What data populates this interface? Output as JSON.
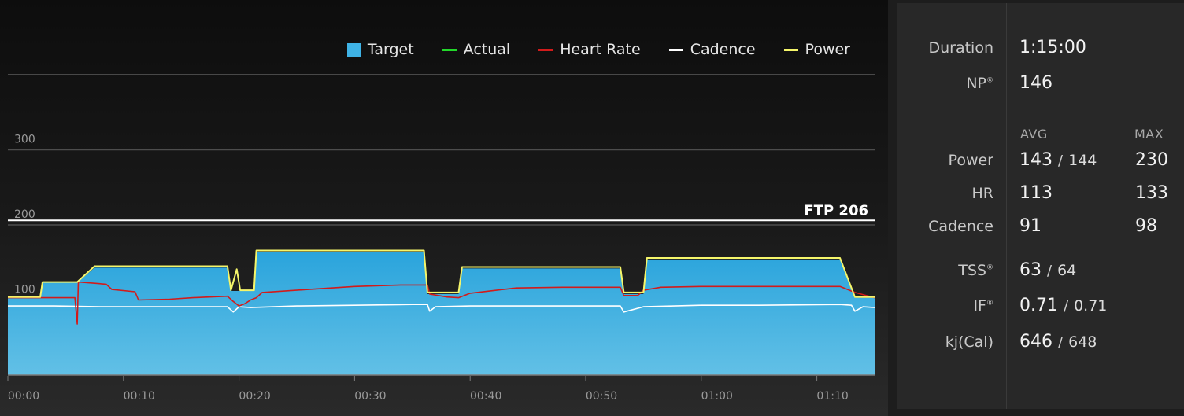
{
  "legend": [
    {
      "label": "Target",
      "color": "#3fb3e6",
      "kind": "box"
    },
    {
      "label": "Actual",
      "color": "#22d82a",
      "kind": "line"
    },
    {
      "label": "Heart Rate",
      "color": "#d21b1b",
      "kind": "line"
    },
    {
      "label": "Cadence",
      "color": "#ffffff",
      "kind": "line"
    },
    {
      "label": "Power",
      "color": "#f5f56a",
      "kind": "line"
    }
  ],
  "chart_data": {
    "type": "area",
    "x_unit": "elapsed time (minutes)",
    "xlim": [
      0,
      75
    ],
    "ylim": [
      0,
      400
    ],
    "x_ticks": [
      {
        "value": 0,
        "label": "00:00"
      },
      {
        "value": 10,
        "label": "00:10"
      },
      {
        "value": 20,
        "label": "00:20"
      },
      {
        "value": 30,
        "label": "00:30"
      },
      {
        "value": 40,
        "label": "00:40"
      },
      {
        "value": 50,
        "label": "00:50"
      },
      {
        "value": 60,
        "label": "01:00"
      },
      {
        "value": 70,
        "label": "01:10"
      }
    ],
    "y_ticks": [
      {
        "value": 100,
        "label": "100"
      },
      {
        "value": 200,
        "label": "200"
      },
      {
        "value": 300,
        "label": "300"
      }
    ],
    "ftp": {
      "value": 206,
      "label": "FTP 206"
    },
    "series": [
      {
        "name": "Target",
        "color": "#3fb3e6",
        "points": [
          [
            0,
            103
          ],
          [
            2.8,
            103
          ],
          [
            3,
            123
          ],
          [
            6,
            123
          ],
          [
            7.5,
            143
          ],
          [
            19,
            143
          ],
          [
            19.3,
            112
          ],
          [
            21.3,
            112
          ],
          [
            21.5,
            164
          ],
          [
            36,
            164
          ],
          [
            36.3,
            108
          ],
          [
            39,
            108
          ],
          [
            39.3,
            142
          ],
          [
            53,
            142
          ],
          [
            53.3,
            108
          ],
          [
            55,
            108
          ],
          [
            55.3,
            154
          ],
          [
            72,
            154
          ],
          [
            73.3,
            103
          ],
          [
            75,
            103
          ]
        ]
      },
      {
        "name": "Power",
        "color": "#f5f56a",
        "points": [
          [
            0,
            104
          ],
          [
            2.8,
            104
          ],
          [
            3,
            124
          ],
          [
            6,
            124
          ],
          [
            7.5,
            145
          ],
          [
            19,
            145
          ],
          [
            19.3,
            113
          ],
          [
            19.8,
            141
          ],
          [
            20.1,
            113
          ],
          [
            21.3,
            113
          ],
          [
            21.5,
            166
          ],
          [
            36,
            166
          ],
          [
            36.3,
            110
          ],
          [
            39,
            110
          ],
          [
            39.3,
            144
          ],
          [
            53,
            144
          ],
          [
            53.3,
            110
          ],
          [
            55,
            110
          ],
          [
            55.3,
            156
          ],
          [
            72,
            156
          ],
          [
            73.3,
            104
          ],
          [
            75,
            104
          ]
        ]
      },
      {
        "name": "Heart Rate",
        "color": "#d21b1b",
        "points": [
          [
            0,
            103
          ],
          [
            5.8,
            103
          ],
          [
            6,
            68
          ],
          [
            6.1,
            124
          ],
          [
            8.5,
            121
          ],
          [
            9,
            114
          ],
          [
            11,
            111
          ],
          [
            11.3,
            100
          ],
          [
            14,
            101
          ],
          [
            16,
            103
          ],
          [
            19,
            105
          ],
          [
            19.5,
            98
          ],
          [
            20,
            92
          ],
          [
            20.5,
            95
          ],
          [
            21,
            100
          ],
          [
            21.5,
            103
          ],
          [
            22,
            110
          ],
          [
            26,
            114
          ],
          [
            30,
            118
          ],
          [
            34,
            120
          ],
          [
            36.3,
            120
          ],
          [
            36.5,
            108
          ],
          [
            38,
            104
          ],
          [
            39,
            103
          ],
          [
            40,
            109
          ],
          [
            44,
            116
          ],
          [
            48,
            117
          ],
          [
            53,
            117
          ],
          [
            53.3,
            106
          ],
          [
            54.5,
            106
          ],
          [
            55,
            113
          ],
          [
            56.5,
            117
          ],
          [
            60,
            118
          ],
          [
            65,
            118
          ],
          [
            70,
            118
          ],
          [
            72,
            118
          ],
          [
            73.3,
            110
          ],
          [
            75,
            103
          ]
        ]
      },
      {
        "name": "Cadence",
        "color": "#ffffff",
        "points": [
          [
            0,
            92
          ],
          [
            4,
            92
          ],
          [
            8,
            91
          ],
          [
            12,
            91
          ],
          [
            16,
            91
          ],
          [
            19,
            91
          ],
          [
            19.5,
            84
          ],
          [
            20,
            91
          ],
          [
            21,
            90
          ],
          [
            25,
            92
          ],
          [
            30,
            93
          ],
          [
            35,
            94
          ],
          [
            36.3,
            94
          ],
          [
            36.5,
            85
          ],
          [
            37,
            91
          ],
          [
            40,
            92
          ],
          [
            45,
            92
          ],
          [
            50,
            92
          ],
          [
            53,
            92
          ],
          [
            53.3,
            84
          ],
          [
            55,
            91
          ],
          [
            60,
            93
          ],
          [
            65,
            93
          ],
          [
            72,
            94
          ],
          [
            73,
            93
          ],
          [
            73.3,
            85
          ],
          [
            74,
            91
          ],
          [
            75,
            90
          ]
        ]
      }
    ]
  },
  "stats": {
    "duration_label": "Duration",
    "duration_value": "1:15:00",
    "np_label": "NP",
    "np_mark": "®",
    "np_value": "146",
    "avg_header": "AVG",
    "max_header": "MAX",
    "power_label": "Power",
    "power_avg": "143",
    "power_avg_alt": "144",
    "power_max": "230",
    "hr_label": "HR",
    "hr_avg": "113",
    "hr_max": "133",
    "cadence_label": "Cadence",
    "cadence_avg": "91",
    "cadence_max": "98",
    "tss_label": "TSS",
    "tss_mark": "®",
    "tss_value": "63",
    "tss_alt": "64",
    "if_label": "IF",
    "if_mark": "®",
    "if_value": "0.71",
    "if_alt": "0.71",
    "kj_label": "kj(Cal)",
    "kj_value": "646",
    "kj_alt": "648",
    "sep": "/"
  }
}
